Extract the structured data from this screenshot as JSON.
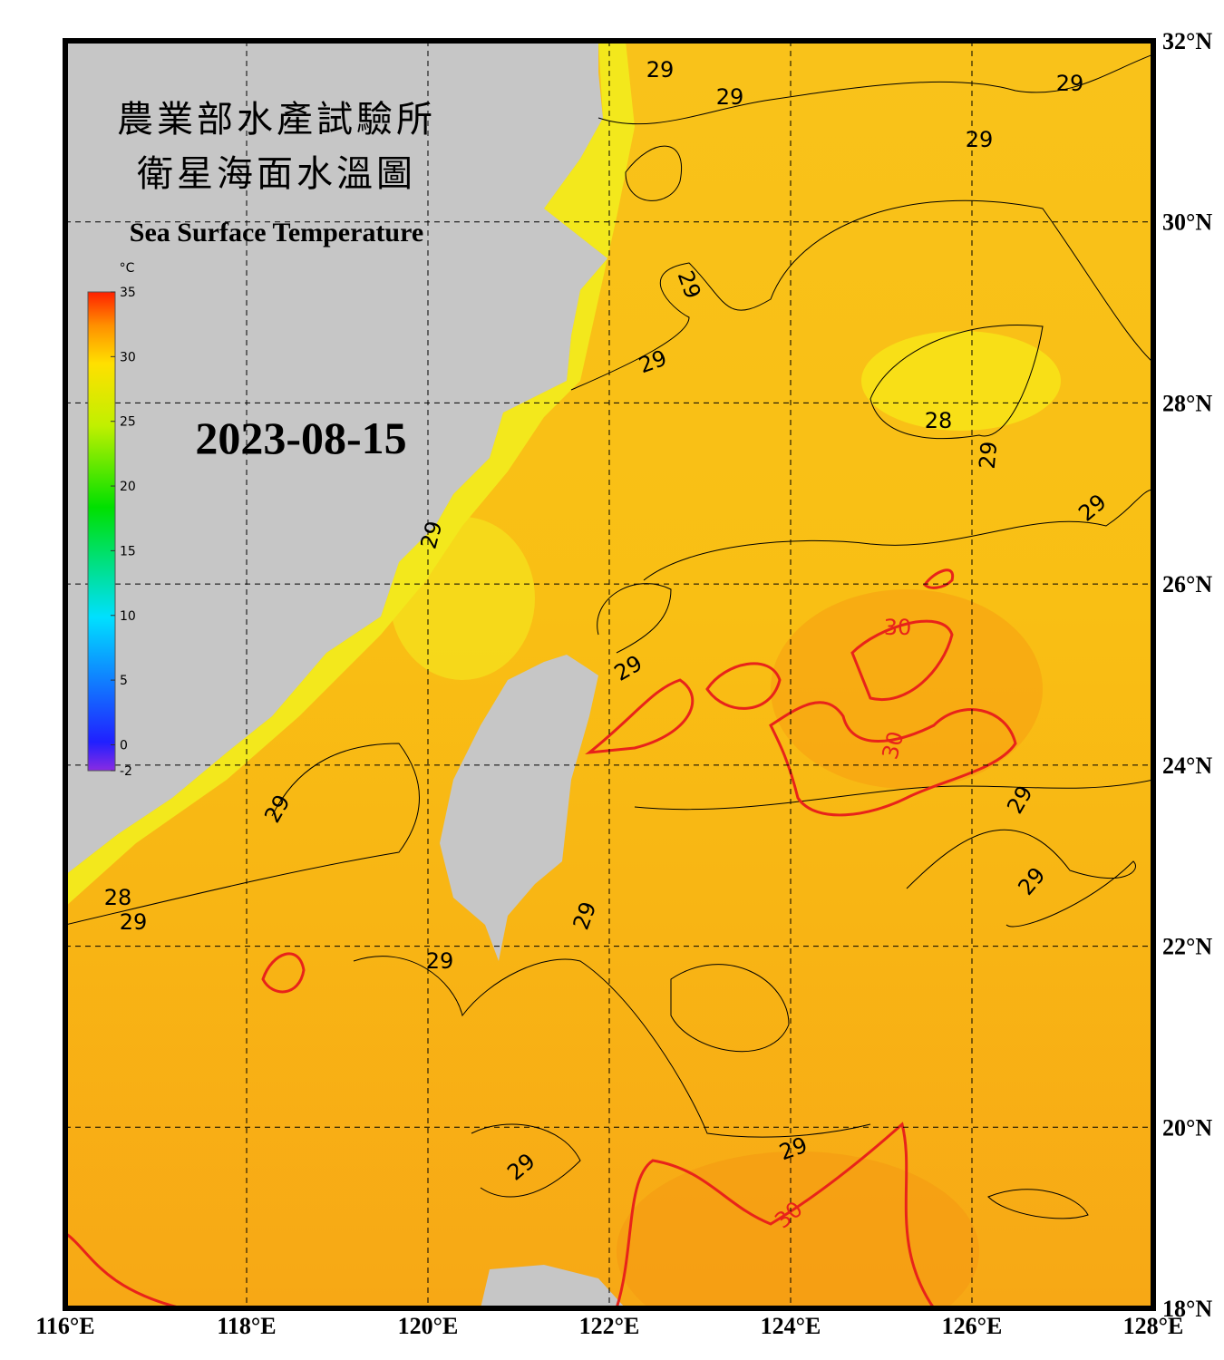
{
  "title_zh_1": "農業部水產試驗所",
  "title_zh_2": "衛星海面水溫圖",
  "title_en": "Sea Surface Temperature",
  "date": "2023-08-15",
  "colorbar": {
    "unit": "°C",
    "range": [
      -2,
      35
    ],
    "ticks": [
      35,
      30,
      25,
      20,
      15,
      10,
      5,
      0,
      -2
    ]
  },
  "axes": {
    "lon_range": [
      116,
      128
    ],
    "lat_range": [
      18,
      32
    ],
    "lon_ticks": [
      {
        "value": 116,
        "label": "116°E"
      },
      {
        "value": 118,
        "label": "118°E"
      },
      {
        "value": 120,
        "label": "120°E"
      },
      {
        "value": 122,
        "label": "122°E"
      },
      {
        "value": 124,
        "label": "124°E"
      },
      {
        "value": 126,
        "label": "126°E"
      },
      {
        "value": 128,
        "label": "128°E"
      }
    ],
    "lat_ticks": [
      {
        "value": 18,
        "label": "18°N"
      },
      {
        "value": 20,
        "label": "20°N"
      },
      {
        "value": 22,
        "label": "22°N"
      },
      {
        "value": 24,
        "label": "24°N"
      },
      {
        "value": 26,
        "label": "26°N"
      },
      {
        "value": 28,
        "label": "28°N"
      },
      {
        "value": 30,
        "label": "30°N"
      },
      {
        "value": 32,
        "label": "32°N"
      }
    ]
  },
  "contour_labels": [
    {
      "value": 29,
      "color": "#000000"
    },
    {
      "value": 29,
      "color": "#000000"
    },
    {
      "value": 29,
      "color": "#000000"
    },
    {
      "value": 29,
      "color": "#000000"
    },
    {
      "value": 29,
      "color": "#000000"
    },
    {
      "value": 29,
      "color": "#000000"
    },
    {
      "value": 28,
      "color": "#000000"
    },
    {
      "value": 29,
      "color": "#000000"
    },
    {
      "value": 29,
      "color": "#000000"
    },
    {
      "value": 29,
      "color": "#000000"
    },
    {
      "value": 30,
      "color": "#e8231a"
    },
    {
      "value": 29,
      "color": "#000000"
    },
    {
      "value": 30,
      "color": "#e8231a"
    },
    {
      "value": 29,
      "color": "#000000"
    },
    {
      "value": 29,
      "color": "#000000"
    },
    {
      "value": 29,
      "color": "#000000"
    },
    {
      "value": 28,
      "color": "#000000"
    },
    {
      "value": 29,
      "color": "#000000"
    },
    {
      "value": 29,
      "color": "#000000"
    },
    {
      "value": 29,
      "color": "#000000"
    },
    {
      "value": 29,
      "color": "#000000"
    },
    {
      "value": 29,
      "color": "#000000"
    },
    {
      "value": 30,
      "color": "#e8231a"
    }
  ]
}
